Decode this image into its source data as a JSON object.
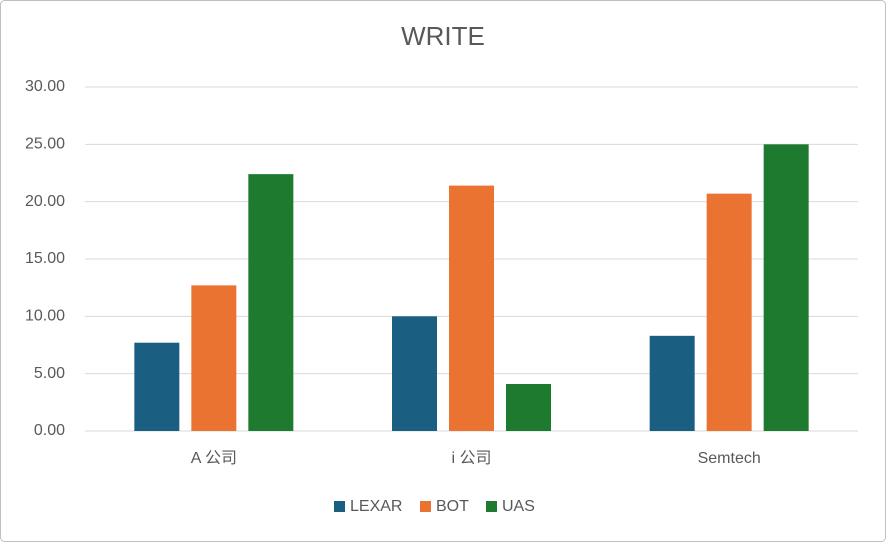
{
  "chart_data": {
    "type": "bar",
    "title": "WRITE",
    "categories": [
      "A 公司",
      "i 公司",
      "Semtech"
    ],
    "series": [
      {
        "name": "LEXAR",
        "color": "#1a5e82",
        "values": [
          7.7,
          10.0,
          8.3
        ]
      },
      {
        "name": "BOT",
        "color": "#eb7331",
        "values": [
          12.7,
          21.4,
          20.7
        ]
      },
      {
        "name": "UAS",
        "color": "#1e7a2e",
        "values": [
          22.4,
          4.1,
          25.0
        ]
      }
    ],
    "ylim": [
      0,
      30
    ],
    "yticks": [
      {
        "value": 0,
        "label": "0.00"
      },
      {
        "value": 5,
        "label": "5.00"
      },
      {
        "value": 10,
        "label": "10.00"
      },
      {
        "value": 15,
        "label": "15.00"
      },
      {
        "value": 20,
        "label": "20.00"
      },
      {
        "value": 25,
        "label": "25.00"
      },
      {
        "value": 30,
        "label": "30.00"
      }
    ],
    "grid": true,
    "legend": "bottom"
  }
}
